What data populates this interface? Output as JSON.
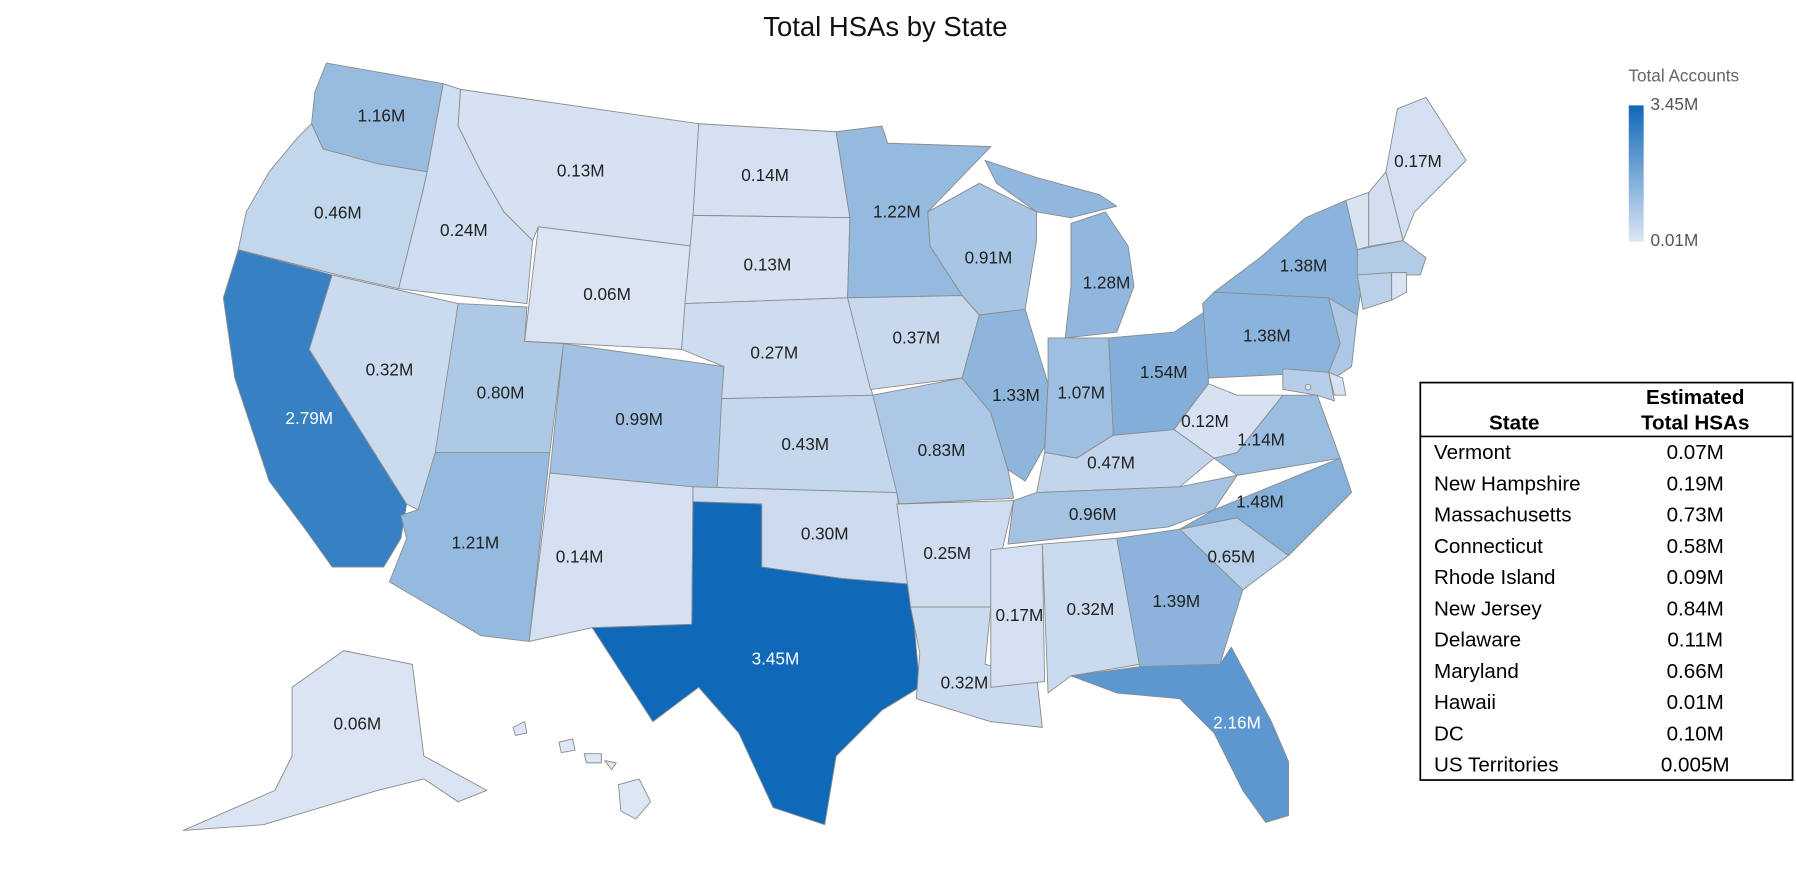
{
  "chart_data": {
    "type": "choropleth",
    "title": "Total HSAs by State",
    "values": [
      1.16,
      0.46,
      2.79,
      0.24,
      0.13,
      0.06,
      0.32,
      0.8,
      1.21,
      0.99,
      0.14,
      0.14,
      0.13,
      0.27,
      0.43,
      0.3,
      3.45,
      1.22,
      0.37,
      0.83,
      0.25,
      0.32,
      0.91,
      1.33,
      1.28,
      1.07,
      1.54,
      0.47,
      0.96,
      0.17,
      0.32,
      1.39,
      2.16,
      0.65,
      1.48,
      1.14,
      0.12,
      1.38,
      1.38,
      0.17,
      0.06
    ],
    "value_labels": [
      "1.16M",
      "0.46M",
      "2.79M",
      "0.24M",
      "0.13M",
      "0.06M",
      "0.32M",
      "0.80M",
      "1.21M",
      "0.99M",
      "0.14M",
      "0.14M",
      "0.13M",
      "0.27M",
      "0.43M",
      "0.30M",
      "3.45M",
      "1.22M",
      "0.37M",
      "0.83M",
      "0.25M",
      "0.32M",
      "0.91M",
      "1.33M",
      "1.28M",
      "1.07M",
      "1.54M",
      "0.47M",
      "0.96M",
      "0.17M",
      "0.32M",
      "1.39M",
      "2.16M",
      "0.65M",
      "1.48M",
      "1.14M",
      "0.12M",
      "1.38M",
      "1.38M",
      "0.17M",
      "0.06M"
    ],
    "legend": {
      "title": "Total Accounts",
      "ticks": [
        {
          "value": 3.45,
          "label": "3.45M"
        },
        {
          "value": 0.01,
          "label": "0.01M"
        }
      ],
      "colors": [
        "#dde6f4",
        "#1068b8"
      ]
    },
    "table": {
      "header": [
        [
          "State"
        ],
        [
          "Estimated",
          "Total HSAs"
        ]
      ],
      "rows": [
        {
          "name": "Vermont",
          "value": 0.07,
          "label": "0.07M"
        },
        {
          "name": "New Hampshire",
          "value": 0.19,
          "label": "0.19M"
        },
        {
          "name": "Massachusetts",
          "value": 0.73,
          "label": "0.73M"
        },
        {
          "name": "Connecticut",
          "value": 0.58,
          "label": "0.58M"
        },
        {
          "name": "Rhode Island",
          "value": 0.09,
          "label": "0.09M"
        },
        {
          "name": "New Jersey",
          "value": 0.84,
          "label": "0.84M"
        },
        {
          "name": "Delaware",
          "value": 0.11,
          "label": "0.11M"
        },
        {
          "name": "Maryland",
          "value": 0.66,
          "label": "0.66M"
        },
        {
          "name": "Hawaii",
          "value": 0.01,
          "label": "0.01M"
        },
        {
          "name": "DC",
          "value": 0.1,
          "label": "0.10M"
        },
        {
          "name": "US Territories",
          "value": 0.005,
          "label": "0.005M"
        }
      ]
    }
  }
}
